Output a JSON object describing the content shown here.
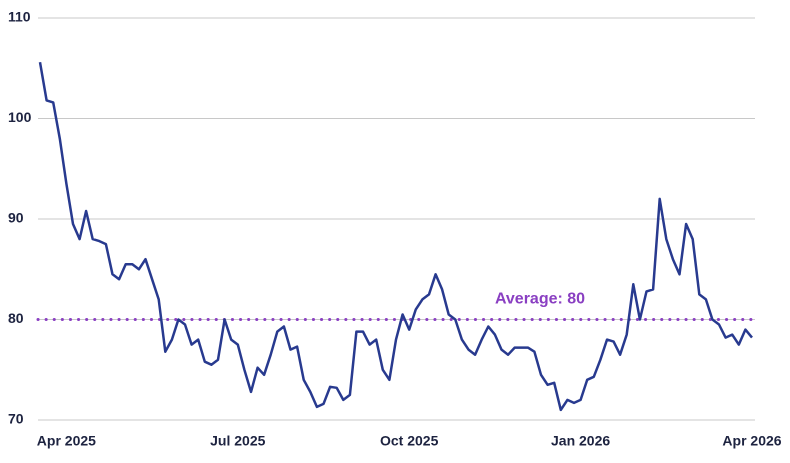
{
  "chart_data": {
    "type": "line",
    "categories": [
      null,
      null,
      null,
      null,
      "Apr 2025",
      null,
      null,
      null,
      null,
      null,
      null,
      null,
      null,
      null,
      null,
      null,
      null,
      null,
      null,
      null,
      null,
      null,
      null,
      null,
      null,
      null,
      null,
      null,
      null,
      null,
      "Jul 2025",
      null,
      null,
      null,
      null,
      null,
      null,
      null,
      null,
      null,
      null,
      null,
      null,
      null,
      null,
      null,
      null,
      null,
      null,
      null,
      null,
      null,
      null,
      null,
      null,
      null,
      "Oct 2025",
      null,
      null,
      null,
      null,
      null,
      null,
      null,
      null,
      null,
      null,
      null,
      null,
      null,
      null,
      null,
      null,
      null,
      null,
      null,
      null,
      null,
      null,
      null,
      null,
      null,
      "Jan 2026",
      null,
      null,
      null,
      null,
      null,
      null,
      null,
      null,
      null,
      null,
      null,
      null,
      null,
      null,
      null,
      null,
      null,
      null,
      null,
      null,
      null,
      null,
      null,
      null,
      null,
      "Apr 2026"
    ],
    "series": [
      {
        "color": "#283a8f",
        "values": [
          105.6,
          101.8,
          101.6,
          98,
          93.5,
          89.5,
          88,
          90.8,
          88,
          87.8,
          87.5,
          84.5,
          84,
          85.5,
          85.5,
          85,
          86,
          84,
          82,
          76.8,
          78,
          80,
          79.5,
          77.5,
          78,
          75.8,
          75.5,
          76,
          80,
          78,
          77.5,
          75,
          72.8,
          75.2,
          74.5,
          76.5,
          78.8,
          79.3,
          77,
          77.3,
          74,
          72.8,
          71.3,
          71.6,
          73.3,
          73.2,
          72,
          72.5,
          78.8,
          78.8,
          77.5,
          78,
          75,
          74,
          78,
          80.5,
          79,
          81,
          82,
          82.5,
          84.5,
          83,
          80.5,
          80,
          78,
          77,
          76.5,
          78,
          79.3,
          78.5,
          77,
          76.5,
          77.2,
          77.2,
          77.2,
          76.8,
          74.5,
          73.5,
          73.7,
          71,
          72,
          71.7,
          72,
          74,
          74.3,
          76,
          78,
          77.8,
          76.5,
          78.5,
          83.5,
          80,
          82.8,
          83,
          92,
          88,
          86,
          84.5,
          89.5,
          88,
          82.5,
          82,
          80,
          79.5,
          78.2,
          78.5,
          77.5,
          79,
          78.2
        ]
      }
    ],
    "average": {
      "value": 80,
      "label": "Average: 80",
      "color": "#8a3fc2"
    },
    "ylim": [
      70,
      110
    ],
    "yticks": [
      70,
      80,
      90,
      100,
      110
    ],
    "grid": true
  }
}
